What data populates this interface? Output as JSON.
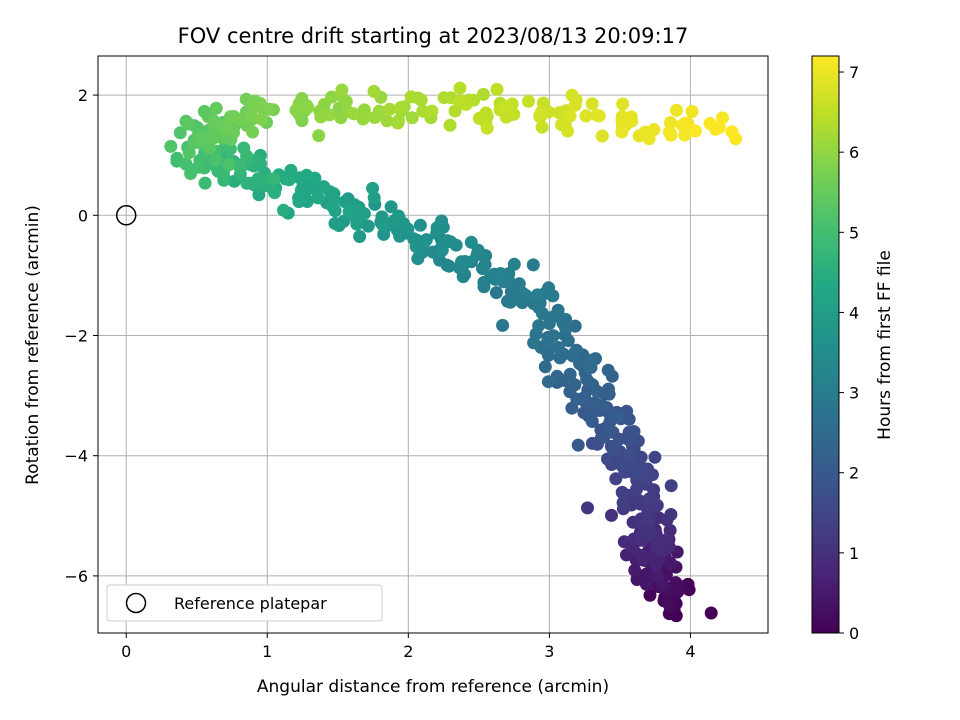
{
  "chart_data": {
    "type": "scatter",
    "title": "FOV centre drift starting at 2023/08/13 20:09:17",
    "xlabel": "Angular distance from reference (arcmin)",
    "ylabel": "Rotation from reference (arcmin)",
    "xlim": [
      -0.2,
      4.55
    ],
    "ylim": [
      -6.95,
      2.65
    ],
    "xticks": [
      0,
      1,
      2,
      3,
      4
    ],
    "yticks": [
      -6,
      -4,
      -2,
      0,
      2
    ],
    "grid": true,
    "colorbar": {
      "label": "Hours from first FF file",
      "range": [
        0,
        7.2
      ],
      "ticks": [
        0,
        1,
        2,
        3,
        4,
        5,
        6,
        7
      ],
      "colormap": "viridis"
    },
    "legend": {
      "placement": "lower-left",
      "entries": [
        "Reference platepar"
      ]
    },
    "reference_point": {
      "x": 0,
      "y": 0
    },
    "drift_path": [
      {
        "t": 0.0,
        "x": 3.87,
        "y": -6.5
      },
      {
        "t": 0.5,
        "x": 3.75,
        "y": -5.8
      },
      {
        "t": 1.0,
        "x": 3.7,
        "y": -5.2
      },
      {
        "t": 1.5,
        "x": 3.6,
        "y": -4.2
      },
      {
        "t": 2.0,
        "x": 3.4,
        "y": -3.3
      },
      {
        "t": 2.5,
        "x": 3.15,
        "y": -2.4
      },
      {
        "t": 3.0,
        "x": 2.75,
        "y": -1.2
      },
      {
        "t": 3.5,
        "x": 2.2,
        "y": -0.4
      },
      {
        "t": 4.0,
        "x": 1.6,
        "y": 0.1
      },
      {
        "t": 4.5,
        "x": 0.95,
        "y": 0.6
      },
      {
        "t": 5.0,
        "x": 0.55,
        "y": 1.0
      },
      {
        "t": 5.3,
        "x": 0.55,
        "y": 1.35
      },
      {
        "t": 5.7,
        "x": 0.9,
        "y": 1.65
      },
      {
        "t": 6.0,
        "x": 1.5,
        "y": 1.8
      },
      {
        "t": 6.3,
        "x": 2.2,
        "y": 1.8
      },
      {
        "t": 6.6,
        "x": 2.8,
        "y": 1.75
      },
      {
        "t": 6.9,
        "x": 3.5,
        "y": 1.6
      },
      {
        "t": 7.2,
        "x": 4.3,
        "y": 1.4
      }
    ],
    "n_points": 620
  }
}
